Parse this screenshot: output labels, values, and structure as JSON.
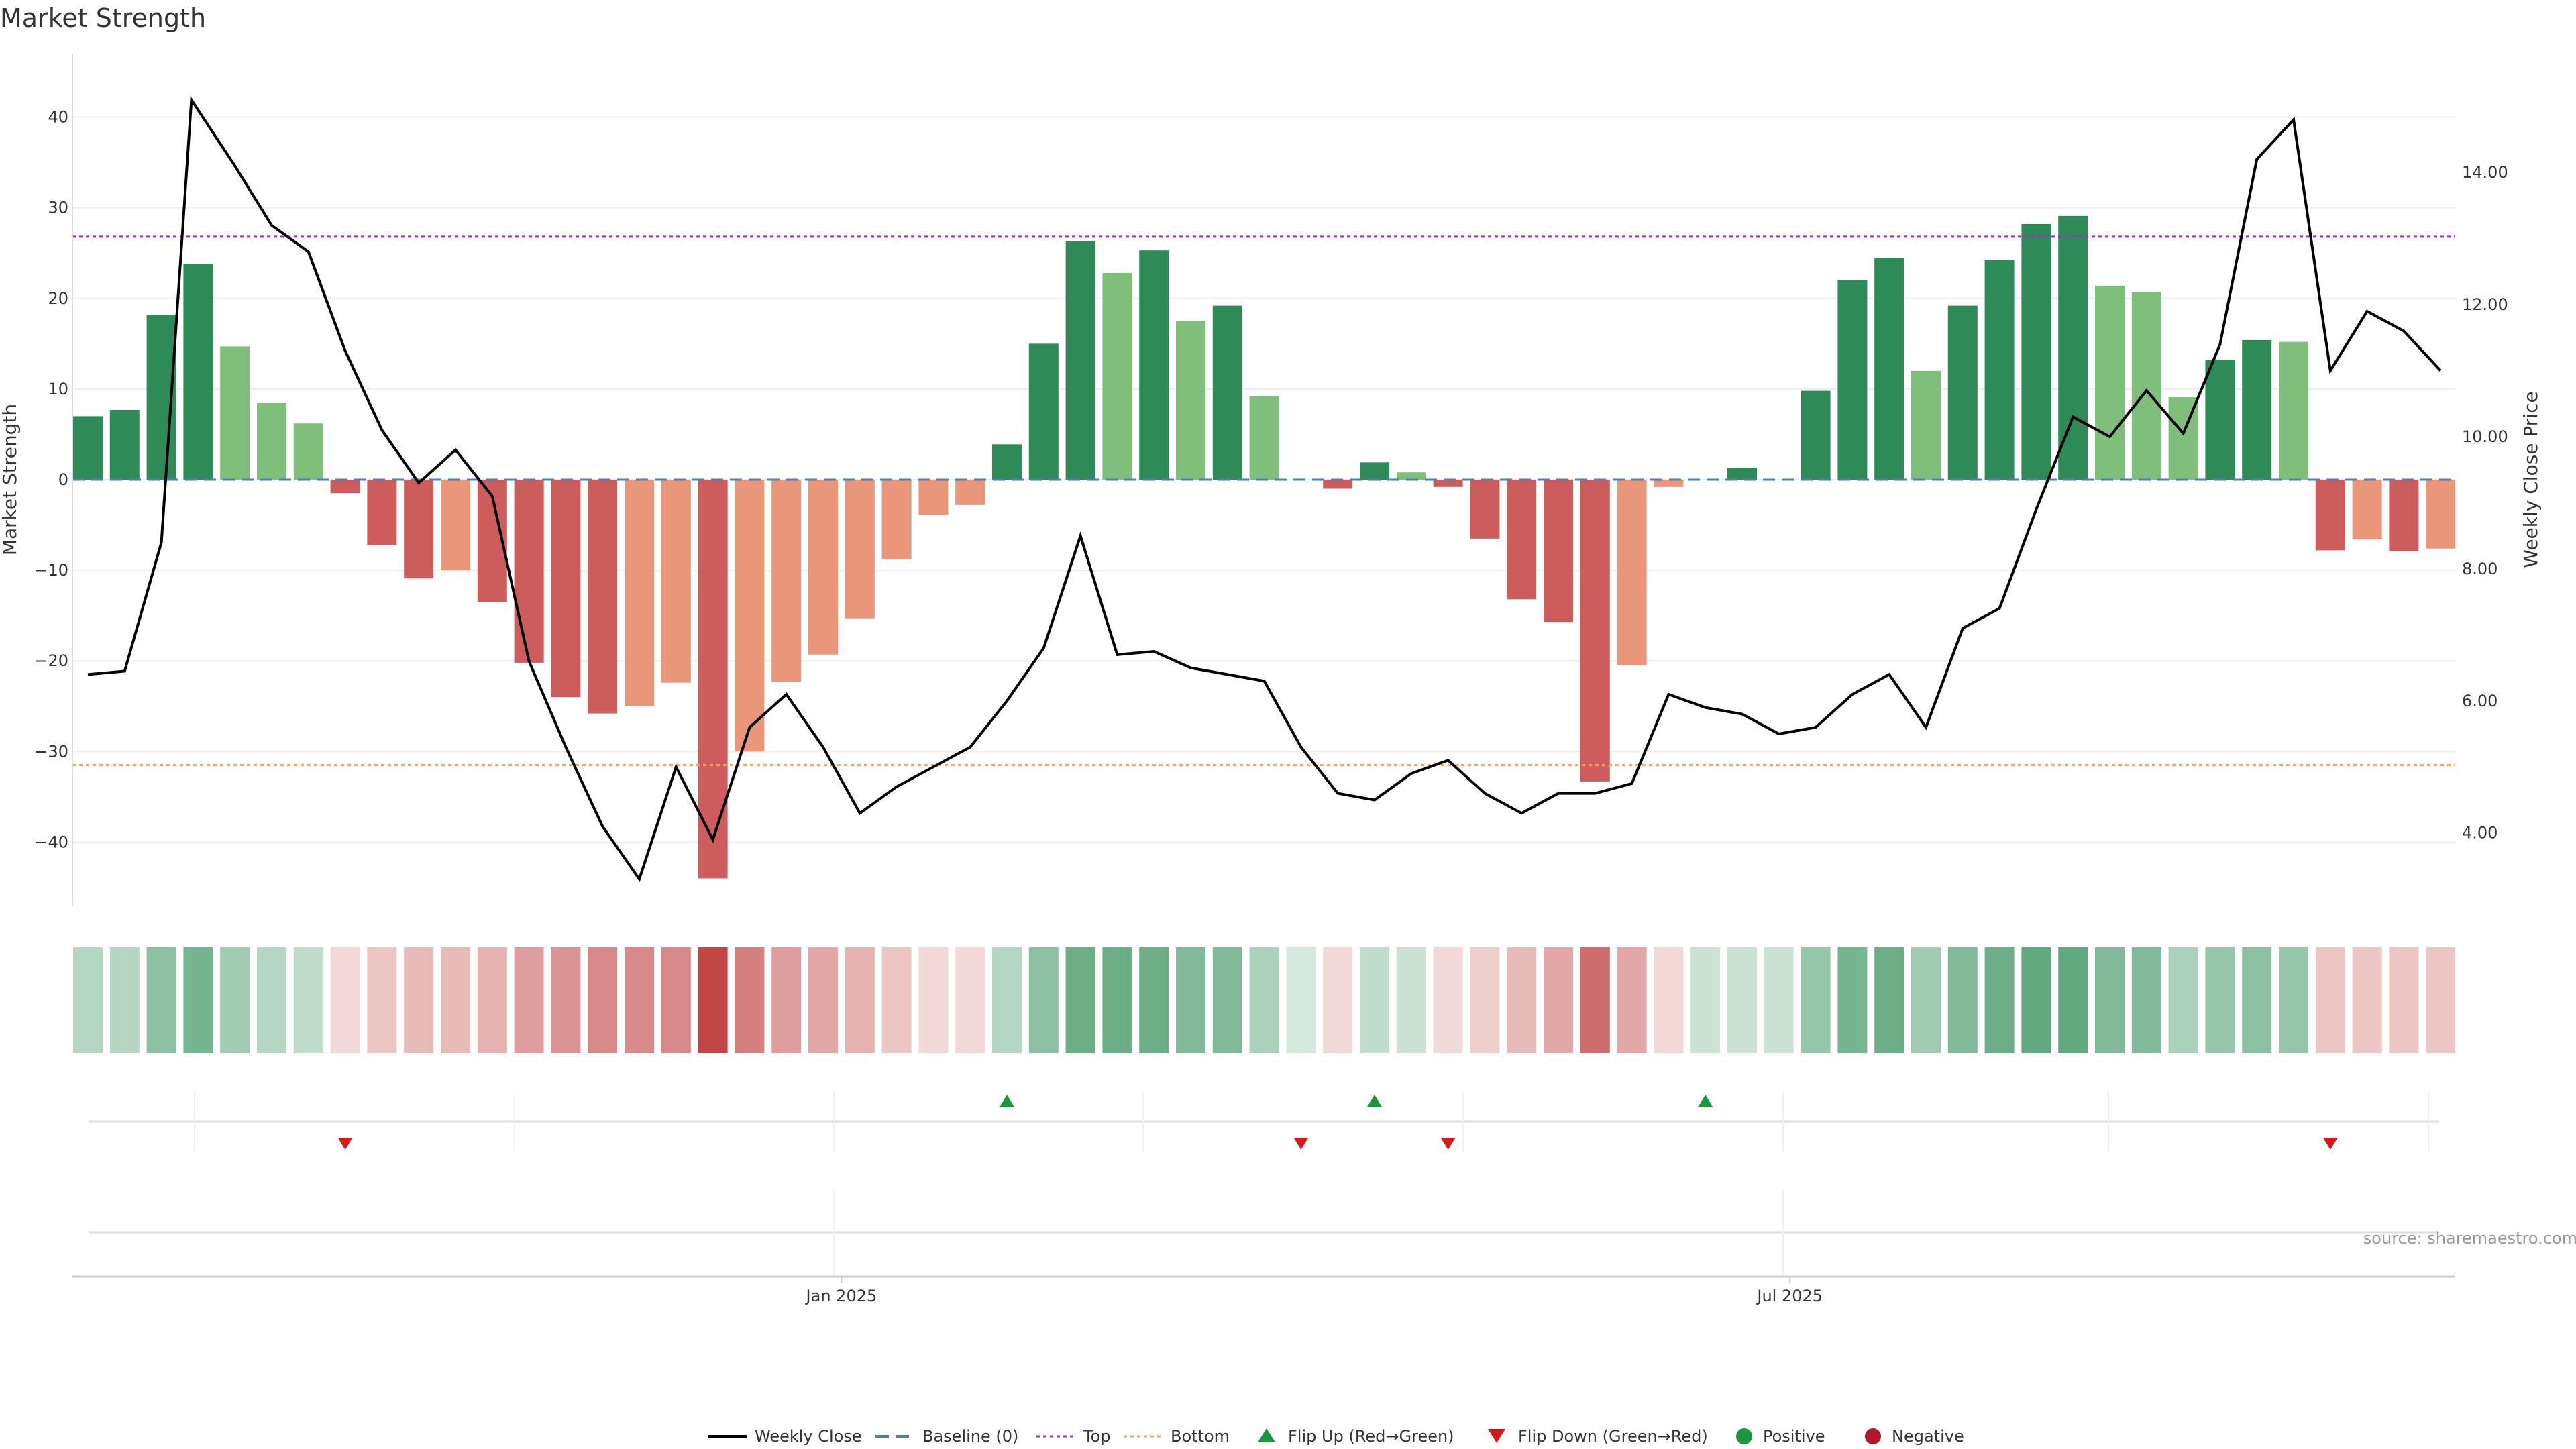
{
  "chart_data": {
    "type": "bar",
    "title": "Market Strength",
    "ylabel": "Market Strength",
    "y2label": "Weekly Close Price",
    "ylim": [
      -47,
      47
    ],
    "y2lim": [
      2.9,
      15.8
    ],
    "y_ticks": [
      40,
      30,
      20,
      10,
      0,
      -10,
      -20,
      -30,
      -40
    ],
    "y_tick_labels": [
      "40",
      "30",
      "20",
      "10",
      "0",
      "−10",
      "−20",
      "−30",
      "−40"
    ],
    "y2_ticks": [
      14,
      12,
      10,
      8,
      6,
      4
    ],
    "y2_tick_labels": [
      "14.00",
      "12.00",
      "10.00",
      "8.00",
      "6.00",
      "4.00"
    ],
    "top_line": 26.8,
    "bottom_line": -31.5,
    "x_tick_labels": [
      {
        "index": 20.5,
        "label": "Jan 2025"
      },
      {
        "index": 46.3,
        "label": "Jul 2025"
      }
    ],
    "colors": {
      "strong_up": "#2e8b57",
      "weak_up": "#7fbf7b",
      "strong_down": "#cd5c5c",
      "weak_down": "#e9967a",
      "price_line": "#000000",
      "baseline": "#4682b4",
      "top": "#9932cc",
      "bottom": "#f4a460",
      "flip_up": "#1a9641",
      "flip_down": "#d7191c",
      "positive": "#1a9641",
      "negative": "#b2182b"
    },
    "series": [
      {
        "name": "Market Strength",
        "values": [
          7,
          7.7,
          18.2,
          23.8,
          14.7,
          8.5,
          6.2,
          -1.5,
          -7.2,
          -10.9,
          -10,
          -13.5,
          -20.2,
          -24,
          -25.8,
          -25,
          -22.4,
          -44,
          -30,
          -22.3,
          -19.3,
          -15.3,
          -8.8,
          -3.9,
          -2.8,
          3.9,
          15,
          26.3,
          22.8,
          25.3,
          17.5,
          19.2,
          9.2,
          0,
          -1,
          1.9,
          0.8,
          -0.8,
          -6.5,
          -13.2,
          -15.7,
          -33.3,
          -20.5,
          -0.8,
          0,
          1.3,
          0,
          9.8,
          22,
          24.5,
          12,
          19.2,
          24.2,
          28.2,
          29.1,
          21.4,
          20.7,
          9.1,
          13.2,
          15.4,
          15.2,
          -7.8,
          -6.6,
          -7.9,
          -7.6
        ],
        "strength_class": [
          "su",
          "su",
          "su",
          "su",
          "wu",
          "wu",
          "wu",
          "sd",
          "sd",
          "sd",
          "wd",
          "sd",
          "sd",
          "sd",
          "sd",
          "wd",
          "wd",
          "sd",
          "wd",
          "wd",
          "wd",
          "wd",
          "wd",
          "wd",
          "wd",
          "su",
          "su",
          "su",
          "wu",
          "su",
          "wu",
          "su",
          "wu",
          "su",
          "sd",
          "su",
          "wu",
          "sd",
          "sd",
          "sd",
          "sd",
          "sd",
          "wd",
          "wd",
          "su",
          "su",
          "su",
          "su",
          "su",
          "su",
          "wu",
          "su",
          "su",
          "su",
          "su",
          "wu",
          "wu",
          "wu",
          "su",
          "su",
          "wu",
          "sd",
          "wd",
          "sd",
          "wd"
        ]
      },
      {
        "name": "Weekly Close",
        "values": [
          6.4,
          6.45,
          8.4,
          15.1,
          14.1,
          13.2,
          12.8,
          11.3,
          10.1,
          9.3,
          9.8,
          9.1,
          6.6,
          5.3,
          4.1,
          3.3,
          5,
          3.9,
          5.6,
          6.1,
          5.3,
          4.3,
          4.7,
          5,
          5.3,
          6,
          6.8,
          8.5,
          6.7,
          6.75,
          6.5,
          6.4,
          6.3,
          5.3,
          4.6,
          4.5,
          4.9,
          5.1,
          4.6,
          4.3,
          4.6,
          4.6,
          4.75,
          6.1,
          5.9,
          5.8,
          5.5,
          5.6,
          6.1,
          6.4,
          5.6,
          7.1,
          7.4,
          8.9,
          10.3,
          10,
          10.7,
          10.05,
          11.4,
          14.2,
          14.8,
          11,
          11.9,
          11.6,
          11
        ],
        "max_point_index": 3
      }
    ],
    "strip_intensity": [
      0.35,
      0.35,
      0.55,
      0.65,
      0.45,
      0.35,
      0.3,
      0.2,
      0.3,
      0.35,
      0.35,
      0.4,
      0.5,
      0.55,
      0.6,
      0.6,
      0.6,
      0.95,
      0.65,
      0.5,
      0.45,
      0.4,
      0.3,
      0.2,
      0.2,
      0.35,
      0.55,
      0.7,
      0.7,
      0.7,
      0.6,
      0.6,
      0.4,
      0.2,
      0.2,
      0.3,
      0.25,
      0.2,
      0.25,
      0.35,
      0.45,
      0.75,
      0.45,
      0.2,
      0.25,
      0.25,
      0.25,
      0.5,
      0.65,
      0.7,
      0.45,
      0.6,
      0.7,
      0.75,
      0.75,
      0.6,
      0.6,
      0.4,
      0.5,
      0.55,
      0.5,
      0.3,
      0.3,
      0.3,
      0.3
    ],
    "flip_up_indices": [
      25,
      35,
      44
    ],
    "flip_down_indices": [
      7,
      33,
      37,
      61
    ],
    "legend": [
      "Weekly Close",
      "Baseline (0)",
      "Top",
      "Bottom",
      "Flip Up (Red→Green)",
      "Flip Down (Green→Red)",
      "Positive",
      "Negative"
    ],
    "source": "source: sharemaestro.com"
  }
}
